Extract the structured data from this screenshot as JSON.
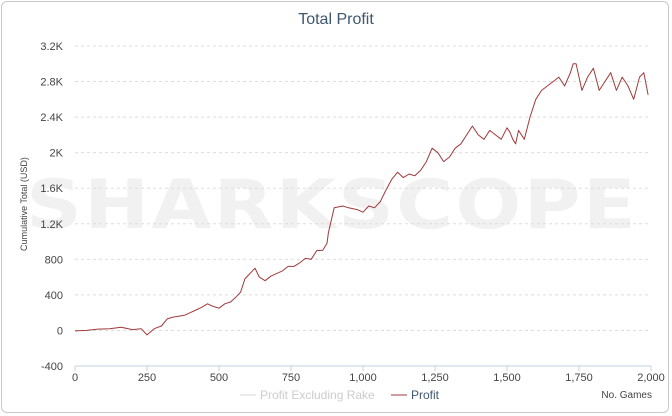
{
  "chart_data": {
    "type": "line",
    "title": "Total Profit",
    "ylabel": "Cumulative Total (USD)",
    "xlabel": "No. Games",
    "watermark": "SHARKSCOPE",
    "xlim": [
      0,
      2000
    ],
    "ylim": [
      -400,
      3200
    ],
    "x_ticks": [
      0,
      250,
      500,
      750,
      1000,
      1250,
      1500,
      1750,
      2000
    ],
    "x_tick_labels": [
      "0",
      "250",
      "500",
      "750",
      "1,000",
      "1,250",
      "1,500",
      "1,750",
      "2,000"
    ],
    "y_ticks": [
      -400,
      0,
      400,
      800,
      1200,
      1600,
      2000,
      2400,
      2800,
      3200
    ],
    "y_tick_labels": [
      "-400",
      "0",
      "400",
      "800",
      "1.2K",
      "1.6K",
      "2K",
      "2.4K",
      "2.8K",
      "3.2K"
    ],
    "grid": true,
    "legend_position": "bottom-center",
    "series": [
      {
        "name": "Profit Excluding Rake",
        "color": "#d7d7d7",
        "visible": false,
        "x": [],
        "y": []
      },
      {
        "name": "Profit",
        "color": "#a0393b",
        "visible": true,
        "x": [
          0,
          40,
          80,
          120,
          160,
          200,
          230,
          250,
          275,
          300,
          320,
          340,
          360,
          380,
          400,
          420,
          440,
          460,
          480,
          500,
          520,
          540,
          560,
          575,
          590,
          610,
          625,
          640,
          660,
          680,
          700,
          720,
          740,
          760,
          780,
          800,
          820,
          840,
          860,
          875,
          880,
          900,
          930,
          950,
          980,
          1000,
          1020,
          1040,
          1060,
          1080,
          1100,
          1120,
          1140,
          1160,
          1180,
          1200,
          1220,
          1240,
          1260,
          1280,
          1300,
          1320,
          1340,
          1360,
          1380,
          1400,
          1420,
          1440,
          1460,
          1480,
          1500,
          1510,
          1520,
          1530,
          1540,
          1560,
          1580,
          1600,
          1620,
          1640,
          1660,
          1680,
          1700,
          1720,
          1730,
          1740,
          1760,
          1780,
          1800,
          1820,
          1840,
          1860,
          1880,
          1900,
          1920,
          1940,
          1960,
          1975,
          1990
        ],
        "y": [
          -5,
          0,
          15,
          20,
          35,
          10,
          20,
          -50,
          20,
          50,
          130,
          150,
          160,
          170,
          200,
          230,
          260,
          300,
          270,
          250,
          300,
          320,
          380,
          430,
          580,
          650,
          700,
          600,
          560,
          610,
          640,
          670,
          720,
          720,
          760,
          810,
          800,
          900,
          900,
          980,
          1100,
          1380,
          1400,
          1380,
          1360,
          1330,
          1400,
          1380,
          1450,
          1580,
          1700,
          1780,
          1720,
          1760,
          1740,
          1800,
          1900,
          2050,
          2000,
          1900,
          1950,
          2050,
          2100,
          2200,
          2300,
          2200,
          2150,
          2250,
          2200,
          2150,
          2280,
          2230,
          2150,
          2100,
          2250,
          2150,
          2400,
          2600,
          2700,
          2750,
          2800,
          2850,
          2750,
          2900,
          3000,
          3000,
          2700,
          2850,
          2950,
          2700,
          2800,
          2900,
          2700,
          2850,
          2750,
          2600,
          2850,
          2900,
          2650
        ]
      }
    ]
  }
}
